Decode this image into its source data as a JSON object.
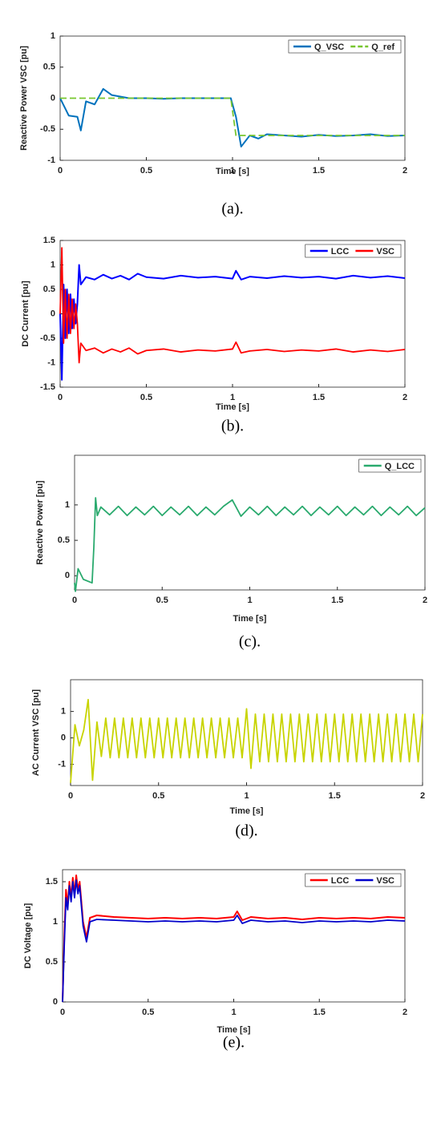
{
  "chart_data": [
    {
      "type": "line",
      "caption": "(a).",
      "ylabel": "Reactive Power VSC [pu]",
      "xlabel": "Time [s]",
      "x": [
        0,
        0.05,
        0.1,
        0.12,
        0.15,
        0.2,
        0.25,
        0.3,
        0.4,
        0.5,
        0.6,
        0.7,
        0.8,
        0.9,
        0.99,
        1.02,
        1.05,
        1.1,
        1.15,
        1.2,
        1.3,
        1.4,
        1.5,
        1.6,
        1.7,
        1.8,
        1.9,
        2
      ],
      "series": [
        {
          "name": "Q_VSC",
          "color": "#0072bd",
          "linestyle": "solid",
          "values": [
            0,
            -0.28,
            -0.3,
            -0.52,
            -0.05,
            -0.1,
            0.15,
            0.05,
            0,
            0,
            -0.01,
            0,
            0,
            0,
            0,
            -0.3,
            -0.78,
            -0.6,
            -0.65,
            -0.58,
            -0.6,
            -0.62,
            -0.59,
            -0.61,
            -0.6,
            -0.58,
            -0.61,
            -0.6
          ]
        },
        {
          "name": "Q_ref",
          "color": "#77c62f",
          "linestyle": "dashed",
          "values": [
            0,
            0,
            0,
            0,
            0,
            0,
            0,
            0,
            0,
            0,
            0,
            0,
            0,
            0,
            0,
            -0.6,
            -0.6,
            -0.6,
            -0.6,
            -0.6,
            -0.6,
            -0.6,
            -0.6,
            -0.6,
            -0.6,
            -0.6,
            -0.6,
            -0.6
          ]
        }
      ],
      "xlim": [
        0,
        2
      ],
      "xticks": [
        0,
        0.5,
        1,
        1.5,
        2
      ],
      "ylim": [
        -1,
        1
      ],
      "yticks": [
        -1,
        -0.5,
        0,
        0.5,
        1
      ],
      "legend": "upper right"
    },
    {
      "type": "line",
      "caption": "(b).",
      "ylabel": "DC Current [pu]",
      "xlabel": "Time [s]",
      "x": [
        0,
        0.01,
        0.02,
        0.03,
        0.04,
        0.05,
        0.06,
        0.07,
        0.08,
        0.09,
        0.1,
        0.11,
        0.12,
        0.15,
        0.2,
        0.25,
        0.3,
        0.35,
        0.4,
        0.45,
        0.5,
        0.6,
        0.7,
        0.8,
        0.9,
        1.0,
        1.02,
        1.05,
        1.1,
        1.2,
        1.3,
        1.4,
        1.5,
        1.6,
        1.7,
        1.8,
        1.9,
        2
      ],
      "series": [
        {
          "name": "LCC",
          "color": "#0000ff",
          "linestyle": "solid",
          "values": [
            0,
            -1.35,
            0.6,
            -0.5,
            0.5,
            -0.4,
            0.4,
            -0.3,
            0.3,
            -0.2,
            0.2,
            1.0,
            0.6,
            0.75,
            0.7,
            0.8,
            0.72,
            0.78,
            0.7,
            0.82,
            0.75,
            0.72,
            0.78,
            0.74,
            0.76,
            0.72,
            0.88,
            0.7,
            0.76,
            0.73,
            0.77,
            0.74,
            0.76,
            0.72,
            0.78,
            0.74,
            0.77,
            0.73
          ]
        },
        {
          "name": "VSC",
          "color": "#ff0000",
          "linestyle": "solid",
          "values": [
            0,
            1.35,
            -0.6,
            0.5,
            -0.5,
            0.4,
            -0.4,
            0.3,
            -0.3,
            0.2,
            -0.2,
            -1.0,
            -0.6,
            -0.75,
            -0.7,
            -0.8,
            -0.72,
            -0.78,
            -0.7,
            -0.82,
            -0.75,
            -0.72,
            -0.78,
            -0.74,
            -0.76,
            -0.72,
            -0.58,
            -0.8,
            -0.76,
            -0.73,
            -0.77,
            -0.74,
            -0.76,
            -0.72,
            -0.78,
            -0.74,
            -0.77,
            -0.73
          ]
        }
      ],
      "xlim": [
        0,
        2
      ],
      "xticks": [
        0,
        0.5,
        1,
        1.5,
        2
      ],
      "ylim": [
        -1.5,
        1.5
      ],
      "yticks": [
        -1.5,
        -1,
        -0.5,
        0,
        0.5,
        1,
        1.5
      ],
      "legend": "upper right"
    },
    {
      "type": "line",
      "caption": "(c).",
      "ylabel": "Reactive Power [pu]",
      "xlabel": "Time [s]",
      "x": [
        0,
        0.005,
        0.02,
        0.05,
        0.1,
        0.11,
        0.12,
        0.13,
        0.15,
        0.2,
        0.25,
        0.3,
        0.35,
        0.4,
        0.45,
        0.5,
        0.55,
        0.6,
        0.65,
        0.7,
        0.75,
        0.8,
        0.85,
        0.9,
        0.95,
        1.0,
        1.05,
        1.1,
        1.15,
        1.2,
        1.25,
        1.3,
        1.35,
        1.4,
        1.45,
        1.5,
        1.55,
        1.6,
        1.65,
        1.7,
        1.75,
        1.8,
        1.85,
        1.9,
        1.95,
        2
      ],
      "series": [
        {
          "name": "Q_LCC",
          "color": "#2aaa6e",
          "linestyle": "solid",
          "values": [
            -0.1,
            -0.22,
            0.1,
            -0.05,
            -0.1,
            0.4,
            1.1,
            0.85,
            0.97,
            0.86,
            0.98,
            0.85,
            0.97,
            0.86,
            0.98,
            0.85,
            0.97,
            0.86,
            0.98,
            0.85,
            0.97,
            0.86,
            0.98,
            1.07,
            0.84,
            0.97,
            0.86,
            0.98,
            0.85,
            0.97,
            0.86,
            0.98,
            0.85,
            0.97,
            0.86,
            0.98,
            0.85,
            0.97,
            0.86,
            0.98,
            0.85,
            0.97,
            0.86,
            0.98,
            0.85,
            0.96
          ]
        }
      ],
      "xlim": [
        0,
        2
      ],
      "xticks": [
        0,
        0.5,
        1,
        1.5,
        2
      ],
      "ylim": [
        -0.2,
        1.7
      ],
      "yticks": [
        0,
        0.5,
        1
      ],
      "legend": "upper right"
    },
    {
      "type": "line",
      "caption": "(d).",
      "ylabel": "AC Current VSC [pu]",
      "xlabel": "Time [s]",
      "x": [
        0,
        0.025,
        0.05,
        0.075,
        0.1,
        0.125,
        0.15,
        0.175,
        0.2,
        0.225,
        0.25,
        0.275,
        0.3,
        0.325,
        0.35,
        0.375,
        0.4,
        0.425,
        0.45,
        0.475,
        0.5,
        0.525,
        0.55,
        0.575,
        0.6,
        0.625,
        0.65,
        0.675,
        0.7,
        0.725,
        0.75,
        0.775,
        0.8,
        0.825,
        0.85,
        0.875,
        0.9,
        0.925,
        0.95,
        0.975,
        1,
        1.025,
        1.05,
        1.075,
        1.1,
        1.125,
        1.15,
        1.175,
        1.2,
        1.225,
        1.25,
        1.275,
        1.3,
        1.325,
        1.35,
        1.375,
        1.4,
        1.425,
        1.45,
        1.475,
        1.5,
        1.525,
        1.55,
        1.575,
        1.6,
        1.625,
        1.65,
        1.675,
        1.7,
        1.725,
        1.75,
        1.775,
        1.8,
        1.825,
        1.85,
        1.875,
        1.9,
        1.925,
        1.95,
        1.975,
        2
      ],
      "series": [
        {
          "color": "#c8d400",
          "linestyle": "solid",
          "values": [
            -1.7,
            0.5,
            -0.3,
            0.3,
            1.45,
            -1.6,
            0.6,
            -0.7,
            0.75,
            -0.75,
            0.75,
            -0.75,
            0.75,
            -0.75,
            0.75,
            -0.75,
            0.75,
            -0.75,
            0.75,
            -0.75,
            0.75,
            -0.75,
            0.75,
            -0.75,
            0.75,
            -0.75,
            0.75,
            -0.75,
            0.75,
            -0.75,
            0.75,
            -0.75,
            0.75,
            -0.75,
            0.75,
            -0.75,
            0.75,
            -0.75,
            0.75,
            -0.75,
            1.1,
            -1.15,
            0.9,
            -0.9,
            0.9,
            -0.9,
            0.9,
            -0.9,
            0.9,
            -0.9,
            0.9,
            -0.9,
            0.9,
            -0.9,
            0.9,
            -0.9,
            0.9,
            -0.9,
            0.9,
            -0.9,
            0.9,
            -0.9,
            0.9,
            -0.9,
            0.9,
            -0.9,
            0.9,
            -0.9,
            0.9,
            -0.9,
            0.9,
            -0.9,
            0.9,
            -0.9,
            0.9,
            -0.9,
            0.9,
            -0.9,
            0.9,
            -0.9,
            0.9
          ]
        }
      ],
      "xlim": [
        0,
        2
      ],
      "xticks": [
        0,
        0.5,
        1,
        1.5,
        2
      ],
      "ylim": [
        -1.8,
        2.2
      ],
      "yticks": [
        -1,
        0,
        1
      ]
    },
    {
      "type": "line",
      "caption": "(e).",
      "ylabel": "DC Voltage [pu]",
      "xlabel": "Time [s]",
      "x": [
        0,
        0.01,
        0.02,
        0.03,
        0.04,
        0.05,
        0.06,
        0.07,
        0.08,
        0.09,
        0.1,
        0.12,
        0.14,
        0.16,
        0.2,
        0.3,
        0.4,
        0.5,
        0.6,
        0.7,
        0.8,
        0.9,
        1.0,
        1.02,
        1.05,
        1.1,
        1.2,
        1.3,
        1.4,
        1.5,
        1.6,
        1.7,
        1.8,
        1.9,
        2
      ],
      "series": [
        {
          "name": "LCC",
          "color": "#ff0000",
          "linestyle": "solid",
          "values": [
            0,
            0.8,
            1.4,
            1.2,
            1.5,
            1.3,
            1.55,
            1.35,
            1.58,
            1.4,
            1.5,
            1.0,
            0.8,
            1.05,
            1.08,
            1.06,
            1.05,
            1.04,
            1.05,
            1.04,
            1.05,
            1.04,
            1.06,
            1.13,
            1.02,
            1.06,
            1.04,
            1.05,
            1.03,
            1.05,
            1.04,
            1.05,
            1.04,
            1.06,
            1.05
          ]
        },
        {
          "name": "VSC",
          "color": "#0000cc",
          "linestyle": "solid",
          "values": [
            0,
            0.7,
            1.3,
            1.15,
            1.45,
            1.25,
            1.5,
            1.3,
            1.52,
            1.35,
            1.45,
            0.95,
            0.75,
            1.0,
            1.03,
            1.02,
            1.01,
            1.0,
            1.01,
            1.0,
            1.01,
            1.0,
            1.02,
            1.08,
            0.98,
            1.02,
            1.0,
            1.01,
            0.99,
            1.01,
            1.0,
            1.01,
            1.0,
            1.02,
            1.01
          ]
        }
      ],
      "xlim": [
        0,
        2
      ],
      "xticks": [
        0,
        0.5,
        1,
        1.5,
        2
      ],
      "ylim": [
        0,
        1.65
      ],
      "yticks": [
        0,
        0.5,
        1,
        1.5
      ],
      "legend": "upper right"
    }
  ]
}
